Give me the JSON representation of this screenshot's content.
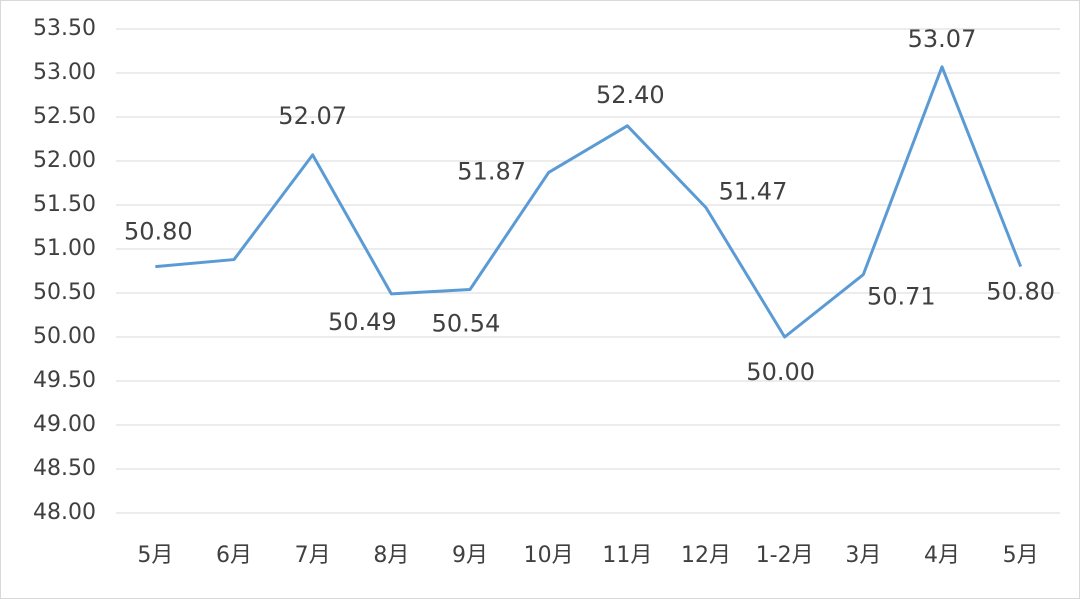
{
  "chart_data": {
    "type": "line",
    "categories": [
      "5月",
      "6月",
      "7月",
      "8月",
      "9月",
      "10月",
      "11月",
      "12月",
      "1-2月",
      "3月",
      "4月",
      "5月"
    ],
    "series": [
      {
        "color": "#5b9bd5",
        "values": [
          50.8,
          50.88,
          52.07,
          50.49,
          50.54,
          51.87,
          52.4,
          51.47,
          50.0,
          50.71,
          53.07,
          50.8
        ],
        "value_labels": [
          "50.80",
          null,
          "52.07",
          "50.49",
          "50.54",
          "51.87",
          "52.40",
          "51.47",
          "50.00",
          "50.71",
          "53.07",
          "50.80"
        ]
      }
    ],
    "ylim": [
      48,
      53.5
    ],
    "yticks": [
      {
        "value": 48,
        "label": "48.00"
      },
      {
        "value": 48.5,
        "label": "48.50"
      },
      {
        "value": 49,
        "label": "49.00"
      },
      {
        "value": 49.5,
        "label": "49.50"
      },
      {
        "value": 50,
        "label": "50.00"
      },
      {
        "value": 50.5,
        "label": "50.50"
      },
      {
        "value": 51,
        "label": "51.00"
      },
      {
        "value": 51.5,
        "label": "51.50"
      },
      {
        "value": 52,
        "label": "52.00"
      },
      {
        "value": 52.5,
        "label": "52.50"
      },
      {
        "value": 53,
        "label": "53.00"
      },
      {
        "value": 53.5,
        "label": "53.50"
      }
    ],
    "grid": true
  }
}
